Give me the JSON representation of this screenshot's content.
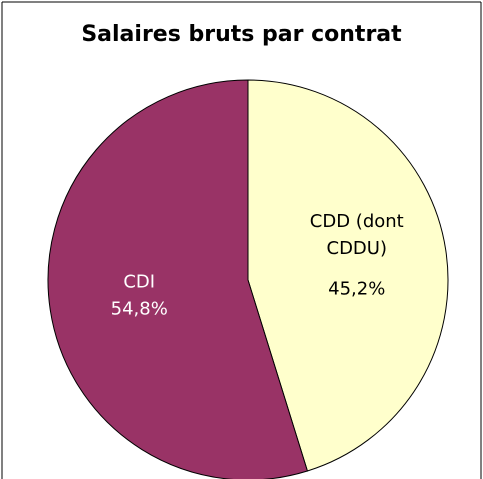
{
  "chart_data": {
    "type": "pie",
    "title": "Salaires bruts par contrat",
    "categories": [
      "CDD (dont CDDU)",
      "CDI"
    ],
    "values": [
      45.2,
      54.8
    ],
    "value_labels": [
      "45,2%",
      "54,8%"
    ],
    "colors": [
      "#ffffcc",
      "#993366"
    ],
    "label_colors": [
      "#000000",
      "#ffffff"
    ]
  }
}
